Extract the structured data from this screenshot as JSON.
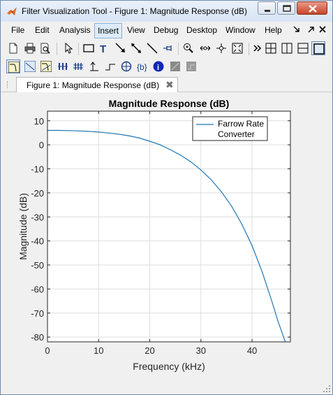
{
  "window": {
    "title": "Filter Visualization Tool - Figure 1: Magnitude Response (dB)"
  },
  "menu": {
    "items": [
      "File",
      "Edit",
      "Analysis",
      "Insert",
      "View",
      "Debug",
      "Desktop",
      "Window",
      "Help"
    ],
    "active": "Insert"
  },
  "tab": {
    "label": "Figure 1: Magnitude Response (dB)"
  },
  "colors": {
    "accent": "#1f77b4",
    "titlebar": "#dce7f5",
    "plot_bg": "#ffffff",
    "grid": "#dedede"
  },
  "chart_data": {
    "type": "line",
    "title": "Magnitude Response (dB)",
    "xlabel": "Frequency (kHz)",
    "ylabel": "Magnitude (dB)",
    "xlim": [
      0,
      47.5
    ],
    "ylim": [
      -82,
      14
    ],
    "xticks": [
      0,
      10,
      20,
      30,
      40
    ],
    "yticks": [
      10,
      0,
      -10,
      -20,
      -30,
      -40,
      -50,
      -60,
      -70,
      -80
    ],
    "grid": true,
    "legend_position": "top-right",
    "series": [
      {
        "name": "Farrow Rate Converter",
        "color": "#1f77b4",
        "x": [
          0,
          2,
          4,
          6,
          8,
          10,
          12,
          14,
          16,
          18,
          20,
          22,
          24,
          26,
          28,
          30,
          32,
          34,
          36,
          38,
          40,
          42,
          44,
          45,
          46,
          46.5
        ],
        "y": [
          6,
          6,
          5.9,
          5.8,
          5.6,
          5.3,
          4.9,
          4.4,
          3.7,
          2.8,
          1.5,
          0,
          -2.0,
          -4.3,
          -7.0,
          -10.5,
          -14.5,
          -19.5,
          -25.5,
          -33,
          -42,
          -53,
          -66,
          -73,
          -79,
          -82
        ]
      }
    ]
  }
}
